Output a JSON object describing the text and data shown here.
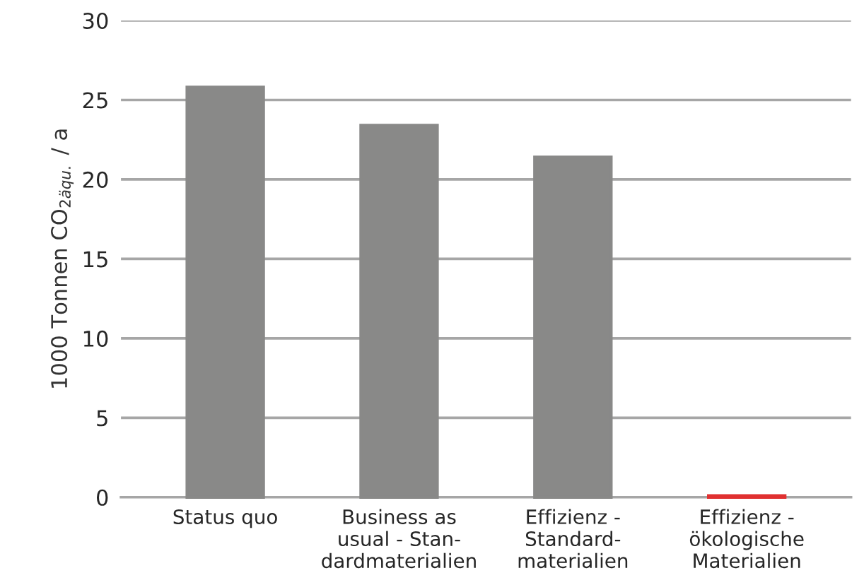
{
  "chart_data": {
    "type": "bar",
    "categories": [
      "Status quo",
      "Business as\nusual - Stan-\ndardmaterialien",
      "Effizienz -\nStandard-\nmaterialien",
      "Effizienz -\nökologische\nMaterialien"
    ],
    "values": [
      25.8,
      23.4,
      21.4,
      0.1
    ],
    "colors": [
      "#898988",
      "#898988",
      "#898988",
      "#e03030"
    ],
    "ylabel": "1000 Tonnen CO$_{2äqu.}$ / a",
    "ylim": [
      0,
      30
    ],
    "yticks": [
      0,
      5,
      10,
      15,
      20,
      25,
      30
    ],
    "grid": "y"
  }
}
